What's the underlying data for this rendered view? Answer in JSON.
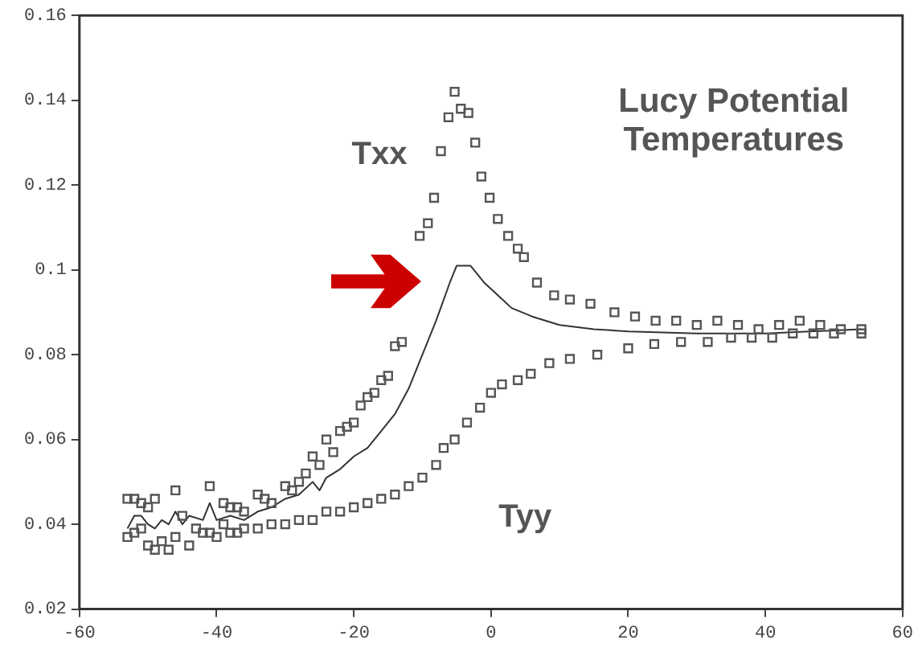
{
  "chart_data": {
    "type": "scatter",
    "title": "Lucy Potential Temperatures",
    "xlim": [
      -60,
      60
    ],
    "xticks": [
      -60,
      -40,
      -20,
      0,
      20,
      40,
      60
    ],
    "ylim": [
      0.02,
      0.16
    ],
    "yticks": [
      0.02,
      0.04,
      0.06,
      0.08,
      0.1,
      0.12,
      0.14,
      0.16
    ],
    "grid": false,
    "legend": false,
    "marker": "square",
    "series": [
      {
        "name": "Txx",
        "color": "#555555",
        "x": [
          -53,
          -52,
          -51,
          -50,
          -49,
          -46,
          -41,
          -39,
          -38,
          -37,
          -36,
          -34,
          -33,
          -32,
          -30,
          -29,
          -28,
          -27,
          -26,
          -25,
          -24,
          -23,
          -22,
          -21,
          -20,
          -19,
          -18,
          -17,
          -16,
          -15,
          -14,
          -13,
          -10.4,
          -9.2,
          -8.3,
          -7.3,
          -6.2,
          -5.3,
          -4.4,
          -3.3,
          -2.3,
          -1.4,
          -0.2,
          1,
          2.5,
          3.9,
          4.8,
          6.7,
          9.2,
          11.5,
          14.5,
          18,
          21,
          24,
          27,
          30,
          33,
          36,
          39,
          42,
          45,
          48,
          51,
          54
        ],
        "values": [
          0.046,
          0.046,
          0.045,
          0.044,
          0.046,
          0.048,
          0.049,
          0.045,
          0.044,
          0.044,
          0.043,
          0.047,
          0.046,
          0.045,
          0.049,
          0.048,
          0.05,
          0.052,
          0.056,
          0.054,
          0.06,
          0.057,
          0.062,
          0.063,
          0.064,
          0.068,
          0.07,
          0.071,
          0.074,
          0.075,
          0.082,
          0.083,
          0.108,
          0.111,
          0.117,
          0.128,
          0.136,
          0.142,
          0.138,
          0.137,
          0.13,
          0.122,
          0.117,
          0.112,
          0.108,
          0.105,
          0.103,
          0.097,
          0.094,
          0.093,
          0.092,
          0.09,
          0.089,
          0.088,
          0.088,
          0.087,
          0.088,
          0.087,
          0.086,
          0.087,
          0.088,
          0.087,
          0.086,
          0.086
        ]
      },
      {
        "name": "Tyy",
        "color": "#555555",
        "x": [
          -53,
          -52,
          -51,
          -50,
          -49,
          -48,
          -47,
          -46,
          -45,
          -44,
          -43,
          -42,
          -41,
          -40,
          -39,
          -38,
          -37,
          -36,
          -34,
          -32,
          -30,
          -28,
          -26,
          -24,
          -22,
          -20,
          -18,
          -16,
          -14,
          -12,
          -10,
          -8,
          -6.9,
          -5.3,
          -3.5,
          -1.6,
          0,
          1.6,
          3.9,
          5.8,
          8.5,
          11.5,
          15.5,
          20,
          23.8,
          27.7,
          31.6,
          35,
          38,
          41,
          44,
          47,
          50,
          54
        ],
        "values": [
          0.037,
          0.038,
          0.039,
          0.035,
          0.034,
          0.036,
          0.034,
          0.037,
          0.042,
          0.035,
          0.039,
          0.038,
          0.038,
          0.037,
          0.04,
          0.038,
          0.038,
          0.039,
          0.039,
          0.04,
          0.04,
          0.041,
          0.041,
          0.043,
          0.043,
          0.044,
          0.045,
          0.046,
          0.047,
          0.049,
          0.051,
          0.054,
          0.058,
          0.06,
          0.064,
          0.0675,
          0.071,
          0.073,
          0.074,
          0.0755,
          0.078,
          0.079,
          0.08,
          0.0815,
          0.0825,
          0.083,
          0.083,
          0.084,
          0.084,
          0.084,
          0.085,
          0.085,
          0.085,
          0.085
        ]
      },
      {
        "type": "line",
        "color": "#333333",
        "marker": "none",
        "line_style": "solid",
        "x": [
          -53,
          -52,
          -51,
          -50,
          -49,
          -48,
          -47,
          -46,
          -45,
          -44,
          -42,
          -41,
          -40,
          -38,
          -36,
          -34,
          -32,
          -30,
          -28,
          -26,
          -25,
          -24,
          -22,
          -20,
          -18,
          -16,
          -14,
          -12,
          -10,
          -8,
          -6,
          -5,
          -3,
          -1,
          1,
          3,
          6,
          10,
          15,
          20,
          30,
          40,
          54
        ],
        "values": [
          0.039,
          0.042,
          0.042,
          0.04,
          0.039,
          0.041,
          0.04,
          0.043,
          0.04,
          0.042,
          0.041,
          0.045,
          0.041,
          0.042,
          0.041,
          0.043,
          0.044,
          0.046,
          0.047,
          0.05,
          0.048,
          0.051,
          0.053,
          0.056,
          0.058,
          0.062,
          0.066,
          0.072,
          0.08,
          0.088,
          0.097,
          0.101,
          0.101,
          0.097,
          0.094,
          0.091,
          0.089,
          0.087,
          0.086,
          0.0855,
          0.085,
          0.085,
          0.086
        ]
      }
    ]
  }
}
